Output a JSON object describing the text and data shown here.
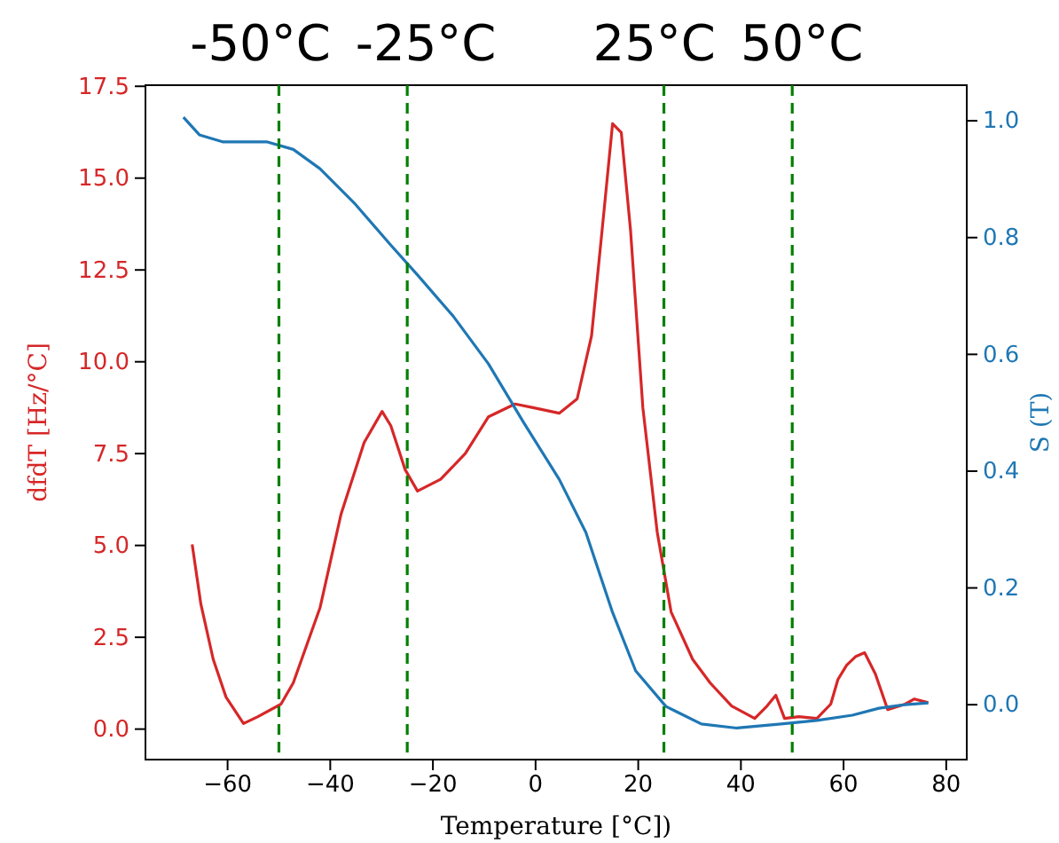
{
  "chart_data": {
    "type": "line",
    "xlabel": "Temperature [°C])",
    "ylabel": "dfdT [Hz/°C]",
    "y2label": "S (T)",
    "xlim": [
      -76,
      84
    ],
    "xticks": [
      {
        "value": -60,
        "label": "−60"
      },
      {
        "value": -40,
        "label": "−40"
      },
      {
        "value": -20,
        "label": "−20"
      },
      0,
      20,
      40,
      60,
      80
    ],
    "ylim": [
      -0.83,
      17.53
    ],
    "yticks": [
      {
        "value": 0,
        "label": "0.0"
      },
      2.5,
      {
        "value": 5,
        "label": "5.0"
      },
      7.5,
      {
        "value": 10,
        "label": "10.0"
      },
      12.5,
      {
        "value": 15,
        "label": "15.0"
      },
      17.5
    ],
    "y2lim": [
      -0.094,
      1.061
    ],
    "y2ticks": [
      {
        "value": 0,
        "label": "0.0"
      },
      0.2,
      0.4,
      0.6,
      0.8,
      {
        "value": 1,
        "label": "1.0"
      }
    ],
    "grid": false,
    "line_style": "solid",
    "marker": "none",
    "series": [
      {
        "color": "#d62728",
        "x": [
          -66.9,
          -65.2,
          -62.8,
          -60.3,
          -56.9,
          -54.1,
          -49.6,
          -47.2,
          -42,
          -37.9,
          -33.4,
          -29.9,
          -28.2,
          -25.4,
          -23,
          -18.5,
          -13.7,
          -9.2,
          -4,
          -0.5,
          4.6,
          8.1,
          10.9,
          13.3,
          15,
          16.7,
          18.5,
          20.9,
          23.7,
          26.4,
          30.6,
          34,
          38.2,
          42.7,
          45.1,
          46.8,
          48.5,
          51.3,
          54.8,
          57.5,
          58.9,
          60.6,
          62.4,
          64.1,
          66.2,
          68.6,
          72,
          73.8,
          76.5
        ],
        "values": [
          5.03,
          3.4,
          1.9,
          0.87,
          0.15,
          0.34,
          0.68,
          1.26,
          3.3,
          5.85,
          7.8,
          8.65,
          8.26,
          7.06,
          6.48,
          6.8,
          7.5,
          8.5,
          8.85,
          8.75,
          8.6,
          8.99,
          10.7,
          14.06,
          16.48,
          16.24,
          13.58,
          8.75,
          5.36,
          3.19,
          1.9,
          1.26,
          0.63,
          0.29,
          0.63,
          0.92,
          0.29,
          0.34,
          0.29,
          0.68,
          1.35,
          1.74,
          1.98,
          2.08,
          1.5,
          0.53,
          0.68,
          0.82,
          0.72
        ]
      },
      {
        "color": "#1f77b4",
        "axis": "y2",
        "x": [
          -68.6,
          -65.5,
          -61,
          -52.4,
          -47.2,
          -42,
          -35.1,
          -28.2,
          -23,
          -16.1,
          -9.2,
          -2.3,
          4.6,
          9.8,
          15,
          19.5,
          25.4,
          32.3,
          39.2,
          47.8,
          54.8,
          61.7,
          66.9,
          72,
          76.5
        ],
        "values": [
          1.006,
          0.976,
          0.964,
          0.964,
          0.951,
          0.918,
          0.857,
          0.787,
          0.736,
          0.666,
          0.584,
          0.483,
          0.386,
          0.295,
          0.158,
          0.058,
          -0.003,
          -0.033,
          -0.04,
          -0.033,
          -0.027,
          -0.018,
          -0.006,
          0,
          0.003
        ]
      }
    ],
    "ref_lines": [
      {
        "axis": "x",
        "value": -50,
        "label": "-50°C",
        "color": "#008000",
        "line_style": "dashed"
      },
      {
        "axis": "x",
        "value": -25,
        "label": "-25°C",
        "color": "#008000",
        "line_style": "dashed"
      },
      {
        "axis": "x",
        "value": 25,
        "label": "25°C",
        "color": "#008000",
        "line_style": "dashed"
      },
      {
        "axis": "x",
        "value": 50,
        "label": "50°C",
        "color": "#008000",
        "line_style": "dashed"
      }
    ]
  }
}
